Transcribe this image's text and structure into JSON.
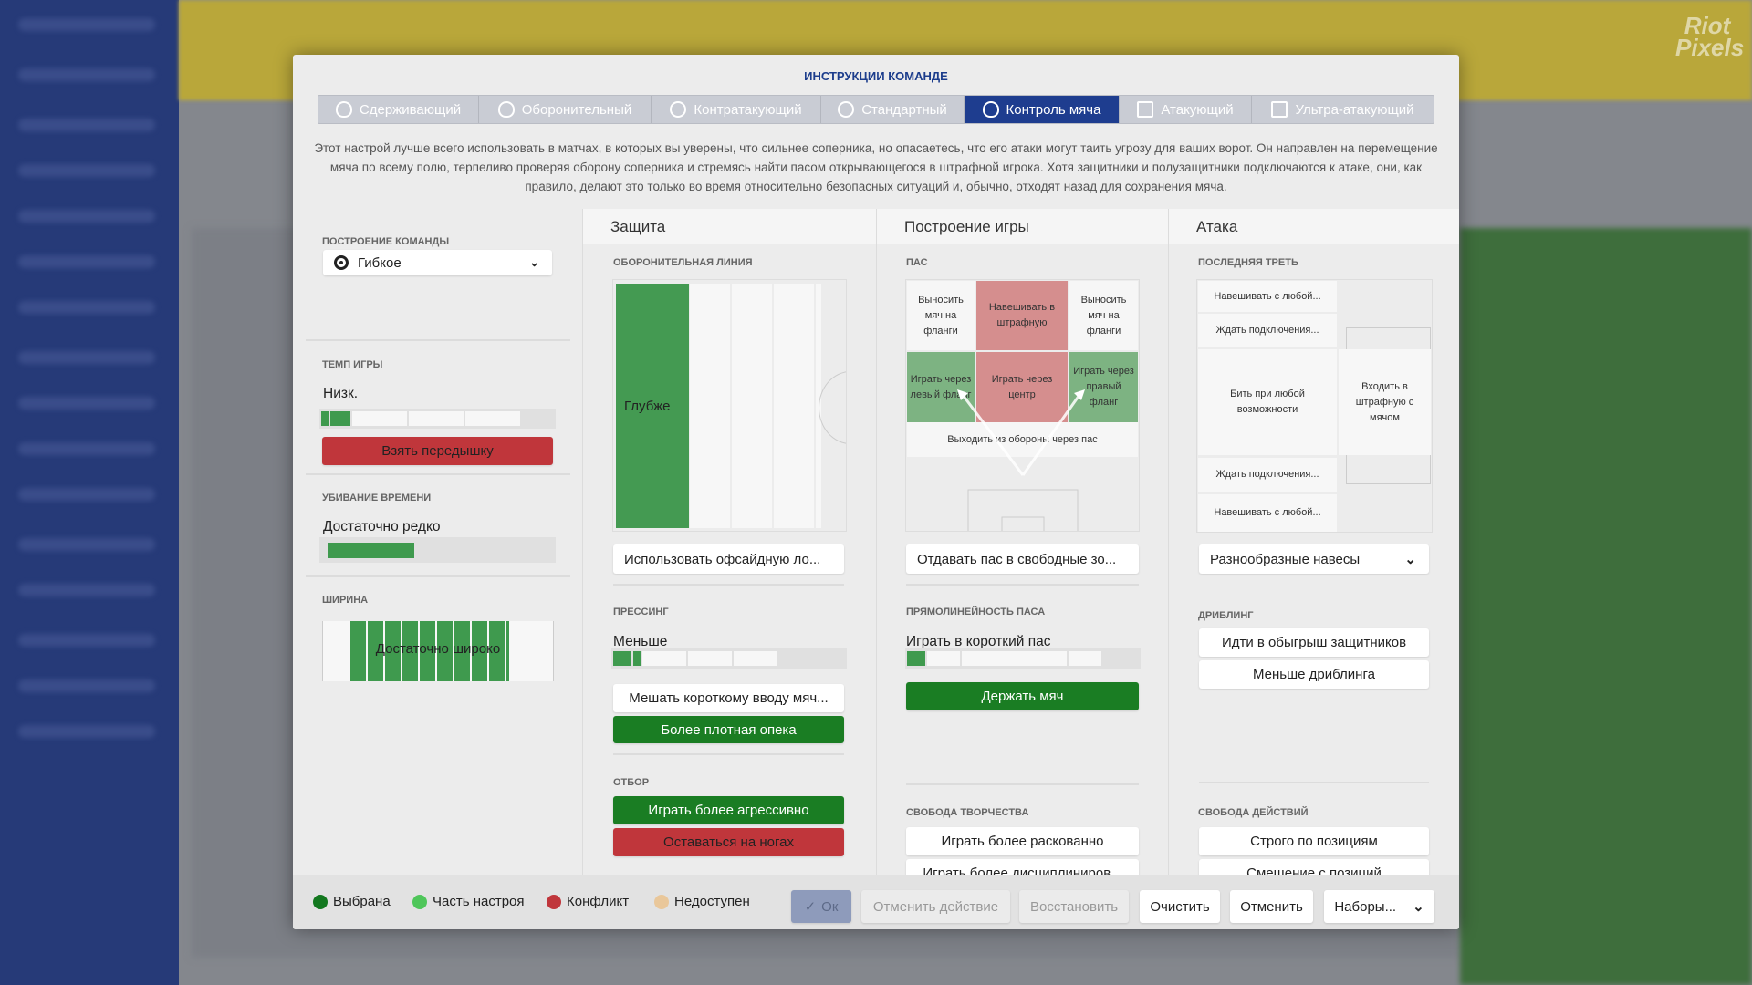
{
  "watermark": "Riot Pixels",
  "title": "ИНСТРУКЦИИ КОМАНДЕ",
  "tabs": [
    {
      "label": "Сдерживающий",
      "icon": "heart-shield-icon"
    },
    {
      "label": "Оборонительный",
      "icon": "shield-icon"
    },
    {
      "label": "Контратакующий",
      "icon": "counter-icon"
    },
    {
      "label": "Стандартный",
      "icon": "circle-icon"
    },
    {
      "label": "Контроль мяча",
      "icon": "ball-shield-icon",
      "active": true
    },
    {
      "label": "Атакующий",
      "icon": "attack-arrow-icon"
    },
    {
      "label": "Ультра-атакующий",
      "icon": "ultra-attack-icon"
    }
  ],
  "description": "Этот настрой лучше всего использовать в матчах, в которых вы уверены, что сильнее соперника, но опасаетесь, что его атаки могут таить угрозу для ваших ворот. Он направлен на перемещение мяча по всему полю, терпеливо проверяя оборону соперника и стремясь найти пасом открывающегося в штрафной игрока. Хотя защитники и полузащитники подключаются к атаке, они, как правило, делают это только во время относительно безопасных ситуаций и, обычно, отходят назад для сохранения мяча.",
  "left": {
    "formation_label": "ПОСТРОЕНИЕ КОМАНДЫ",
    "formation_value": "Гибкое",
    "tempo_label": "ТЕМП ИГРЫ",
    "tempo_value": "Низк.",
    "tempo_level": 0.2,
    "tempo_button": "Взять передышку",
    "timewasting_label": "УБИВАНИЕ ВРЕМЕНИ",
    "timewasting_value": "Достаточно редко",
    "timewasting_level": 0.4,
    "width_label": "ШИРИНА",
    "width_value": "Достаточно широко"
  },
  "defense": {
    "header": "Защита",
    "line_label": "ОБОРОНИТЕЛЬНАЯ ЛИНИЯ",
    "line_value": "Глубже",
    "offside_button": "Использовать офсайдную ло...",
    "pressing_label": "ПРЕССИНГ",
    "pressing_value": "Меньше",
    "press_btn1": "Мешать короткому вводу мяч...",
    "press_btn2": "Более плотная опека",
    "tackle_label": "ОТБОР",
    "tackle_btn1": "Играть более агрессивно",
    "tackle_btn2": "Оставаться на ногах"
  },
  "buildup": {
    "header": "Построение игры",
    "pass_label": "ПАС",
    "cells": {
      "tl": "Выносить мяч на фланги",
      "tc": "Навешивать в штрафную",
      "tr": "Выносить мяч на фланги",
      "ml": "Играть через левый фланг",
      "mc": "Играть через центр",
      "mr": "Играть через правый фланг",
      "bottom": "Выходить из обороны через пас"
    },
    "space_button": "Отдавать пас в свободные зо...",
    "directness_label": "ПРЯМОЛИНЕЙНОСТЬ ПАСА",
    "directness_value": "Играть в короткий пас",
    "hold_button": "Держать мяч",
    "creative_label": "СВОБОДА ТВОРЧЕСТВА",
    "creative_btn1": "Играть более раскованно",
    "creative_btn2": "Играть более дисциплиниров..."
  },
  "attack": {
    "header": "Атака",
    "final_label": "ПОСЛЕДНЯЯ ТРЕТЬ",
    "cells": [
      "Навешивать с любой...",
      "Ждать подключения...",
      "Бить при любой возможности",
      "Ждать подключения...",
      "Навешивать с любой..."
    ],
    "work_box": "Входить в штрафную с мячом",
    "cross_select": "Разнообразные навесы",
    "dribble_label": "ДРИБЛИНГ",
    "dribble_btn1": "Идти в обыгрыш защитников",
    "dribble_btn2": "Меньше дриблинга",
    "freedom_label": "СВОБОДА ДЕЙСТВИЙ",
    "freedom_btn1": "Строго по позициям",
    "freedom_btn2": "Смещение с позиций"
  },
  "legend": [
    {
      "label": "Выбрана",
      "color": "#13781f"
    },
    {
      "label": "Часть настроя",
      "color": "#4fc65a"
    },
    {
      "label": "Конфликт",
      "color": "#c0363b"
    },
    {
      "label": "Недоступен",
      "color": "#e9c79a"
    }
  ],
  "footer": {
    "ok": "Ок",
    "undo": "Отменить действие",
    "redo": "Восстановить",
    "clear": "Очистить",
    "cancel": "Отменить",
    "presets": "Наборы..."
  }
}
